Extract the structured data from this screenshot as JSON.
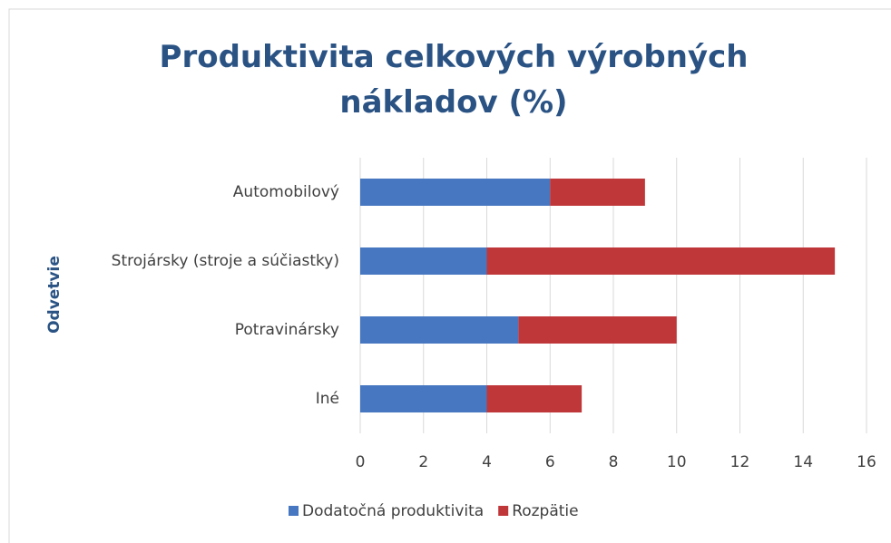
{
  "chart_data": {
    "type": "stacked_barh",
    "title": "Produktivita celkových výrobných nákladov (%)",
    "y_label": "Odvetvie",
    "categories": [
      "Automobilový",
      "Strojársky (stroje a súčiastky)",
      "Potravinársky",
      "Iné"
    ],
    "series": [
      {
        "name": "Dodatočná produktivita",
        "color": "#4677c0",
        "values": [
          6,
          4,
          5,
          4
        ]
      },
      {
        "name": "Rozpätie",
        "color": "#c0373a",
        "values": [
          3,
          11,
          5,
          3
        ]
      }
    ],
    "xlim": [
      0,
      16
    ],
    "xticks": [
      0,
      2,
      4,
      6,
      8,
      10,
      12,
      14,
      16
    ],
    "grid": true,
    "legend": "bottom"
  }
}
